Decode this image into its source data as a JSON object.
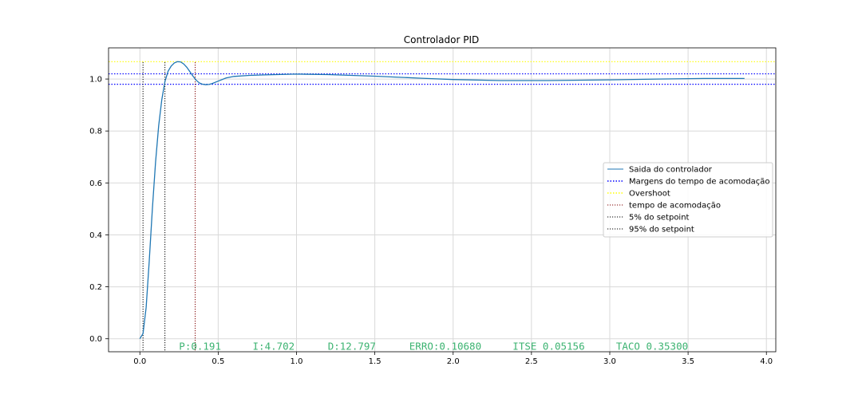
{
  "chart_data": {
    "type": "line",
    "title": "Controlador PID",
    "xlabel": "",
    "ylabel": "",
    "xlim": [
      -0.2,
      4.06
    ],
    "ylim": [
      -0.05,
      1.12
    ],
    "xticks": [
      0.0,
      0.5,
      1.0,
      1.5,
      2.0,
      2.5,
      3.0,
      3.5,
      4.0
    ],
    "xtick_labels": [
      "0.0",
      "0.5",
      "1.0",
      "1.5",
      "2.0",
      "2.5",
      "3.0",
      "3.5",
      "4.0"
    ],
    "yticks": [
      0.0,
      0.2,
      0.4,
      0.6,
      0.8,
      1.0
    ],
    "ytick_labels": [
      "0.0",
      "0.2",
      "0.4",
      "0.6",
      "0.8",
      "1.0"
    ],
    "grid": true,
    "legend_position": "center-right",
    "series": [
      {
        "name": "Saida do controlador",
        "kind": "line",
        "color": "#1f77b4",
        "x": [
          0.0,
          0.02,
          0.04,
          0.06,
          0.08,
          0.1,
          0.12,
          0.14,
          0.16,
          0.18,
          0.2,
          0.22,
          0.24,
          0.26,
          0.28,
          0.3,
          0.32,
          0.34,
          0.36,
          0.38,
          0.4,
          0.42,
          0.44,
          0.46,
          0.5,
          0.55,
          0.6,
          0.7,
          0.8,
          1.0,
          1.2,
          1.5,
          1.8,
          2.0,
          2.3,
          2.6,
          3.0,
          3.3,
          3.6,
          3.86
        ],
        "y": [
          0.0,
          0.02,
          0.12,
          0.3,
          0.5,
          0.68,
          0.82,
          0.92,
          0.99,
          1.03,
          1.05,
          1.062,
          1.067,
          1.066,
          1.058,
          1.045,
          1.028,
          1.01,
          0.995,
          0.985,
          0.98,
          0.978,
          0.979,
          0.982,
          0.992,
          1.004,
          1.01,
          1.014,
          1.016,
          1.019,
          1.017,
          1.011,
          1.003,
          0.998,
          0.994,
          0.994,
          0.997,
          1.0,
          1.002,
          1.002
        ]
      },
      {
        "name": "Margens do tempo de acomodação",
        "kind": "hline",
        "color": "#0000ff",
        "y_values": [
          1.02,
          0.98
        ]
      },
      {
        "name": "Overshoot",
        "kind": "hline",
        "color": "#ffff00",
        "y_values": [
          1.0668
        ]
      },
      {
        "name": "tempo de acomodação",
        "kind": "vline",
        "color": "#800000",
        "x_values": [
          0.353
        ]
      },
      {
        "name": "5% do setpoint",
        "kind": "vline",
        "color": "#000000",
        "x_values": [
          0.02
        ]
      },
      {
        "name": "95% do setpoint",
        "kind": "vline",
        "color": "#000000",
        "x_values": [
          0.16
        ]
      }
    ],
    "annotations": [
      {
        "text": "P:0.191",
        "x": 0.25,
        "y": -0.03
      },
      {
        "text": "I:4.702",
        "x": 0.72,
        "y": -0.03
      },
      {
        "text": "D:12.797",
        "x": 1.2,
        "y": -0.03
      },
      {
        "text": "ERRO:0.10680",
        "x": 1.72,
        "y": -0.03
      },
      {
        "text": "ITSE 0.05156",
        "x": 2.38,
        "y": -0.03
      },
      {
        "text": "TACO 0.35300",
        "x": 3.04,
        "y": -0.03
      }
    ],
    "annotation_color": "#3cb371"
  }
}
